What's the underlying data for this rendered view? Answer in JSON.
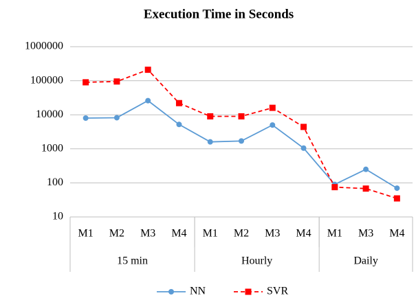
{
  "chart_data": {
    "type": "line",
    "title": "Execution Time in Seconds",
    "groups": [
      {
        "name": "15 min",
        "categories": [
          "M1",
          "M2",
          "M3",
          "M4"
        ]
      },
      {
        "name": "Hourly",
        "categories": [
          "M1",
          "M2",
          "M3",
          "M4"
        ]
      },
      {
        "name": "Daily",
        "categories": [
          "M1",
          "M3",
          "M4"
        ]
      }
    ],
    "series": [
      {
        "name": "NN",
        "color": "#5b9bd5",
        "marker": "circle",
        "dashed": false,
        "values": [
          8000,
          8200,
          26000,
          5200,
          1600,
          1700,
          5000,
          1050,
          90,
          250,
          70
        ]
      },
      {
        "name": "SVR",
        "color": "#ff0000",
        "marker": "square",
        "dashed": true,
        "values": [
          90000,
          95000,
          210000,
          22000,
          9000,
          9000,
          16000,
          4400,
          75,
          68,
          35
        ]
      }
    ],
    "ylim": [
      10,
      1000000
    ],
    "yticks": [
      10,
      100,
      1000,
      10000,
      100000,
      1000000
    ],
    "log_y": true,
    "grid": true,
    "legend": "bottom"
  }
}
